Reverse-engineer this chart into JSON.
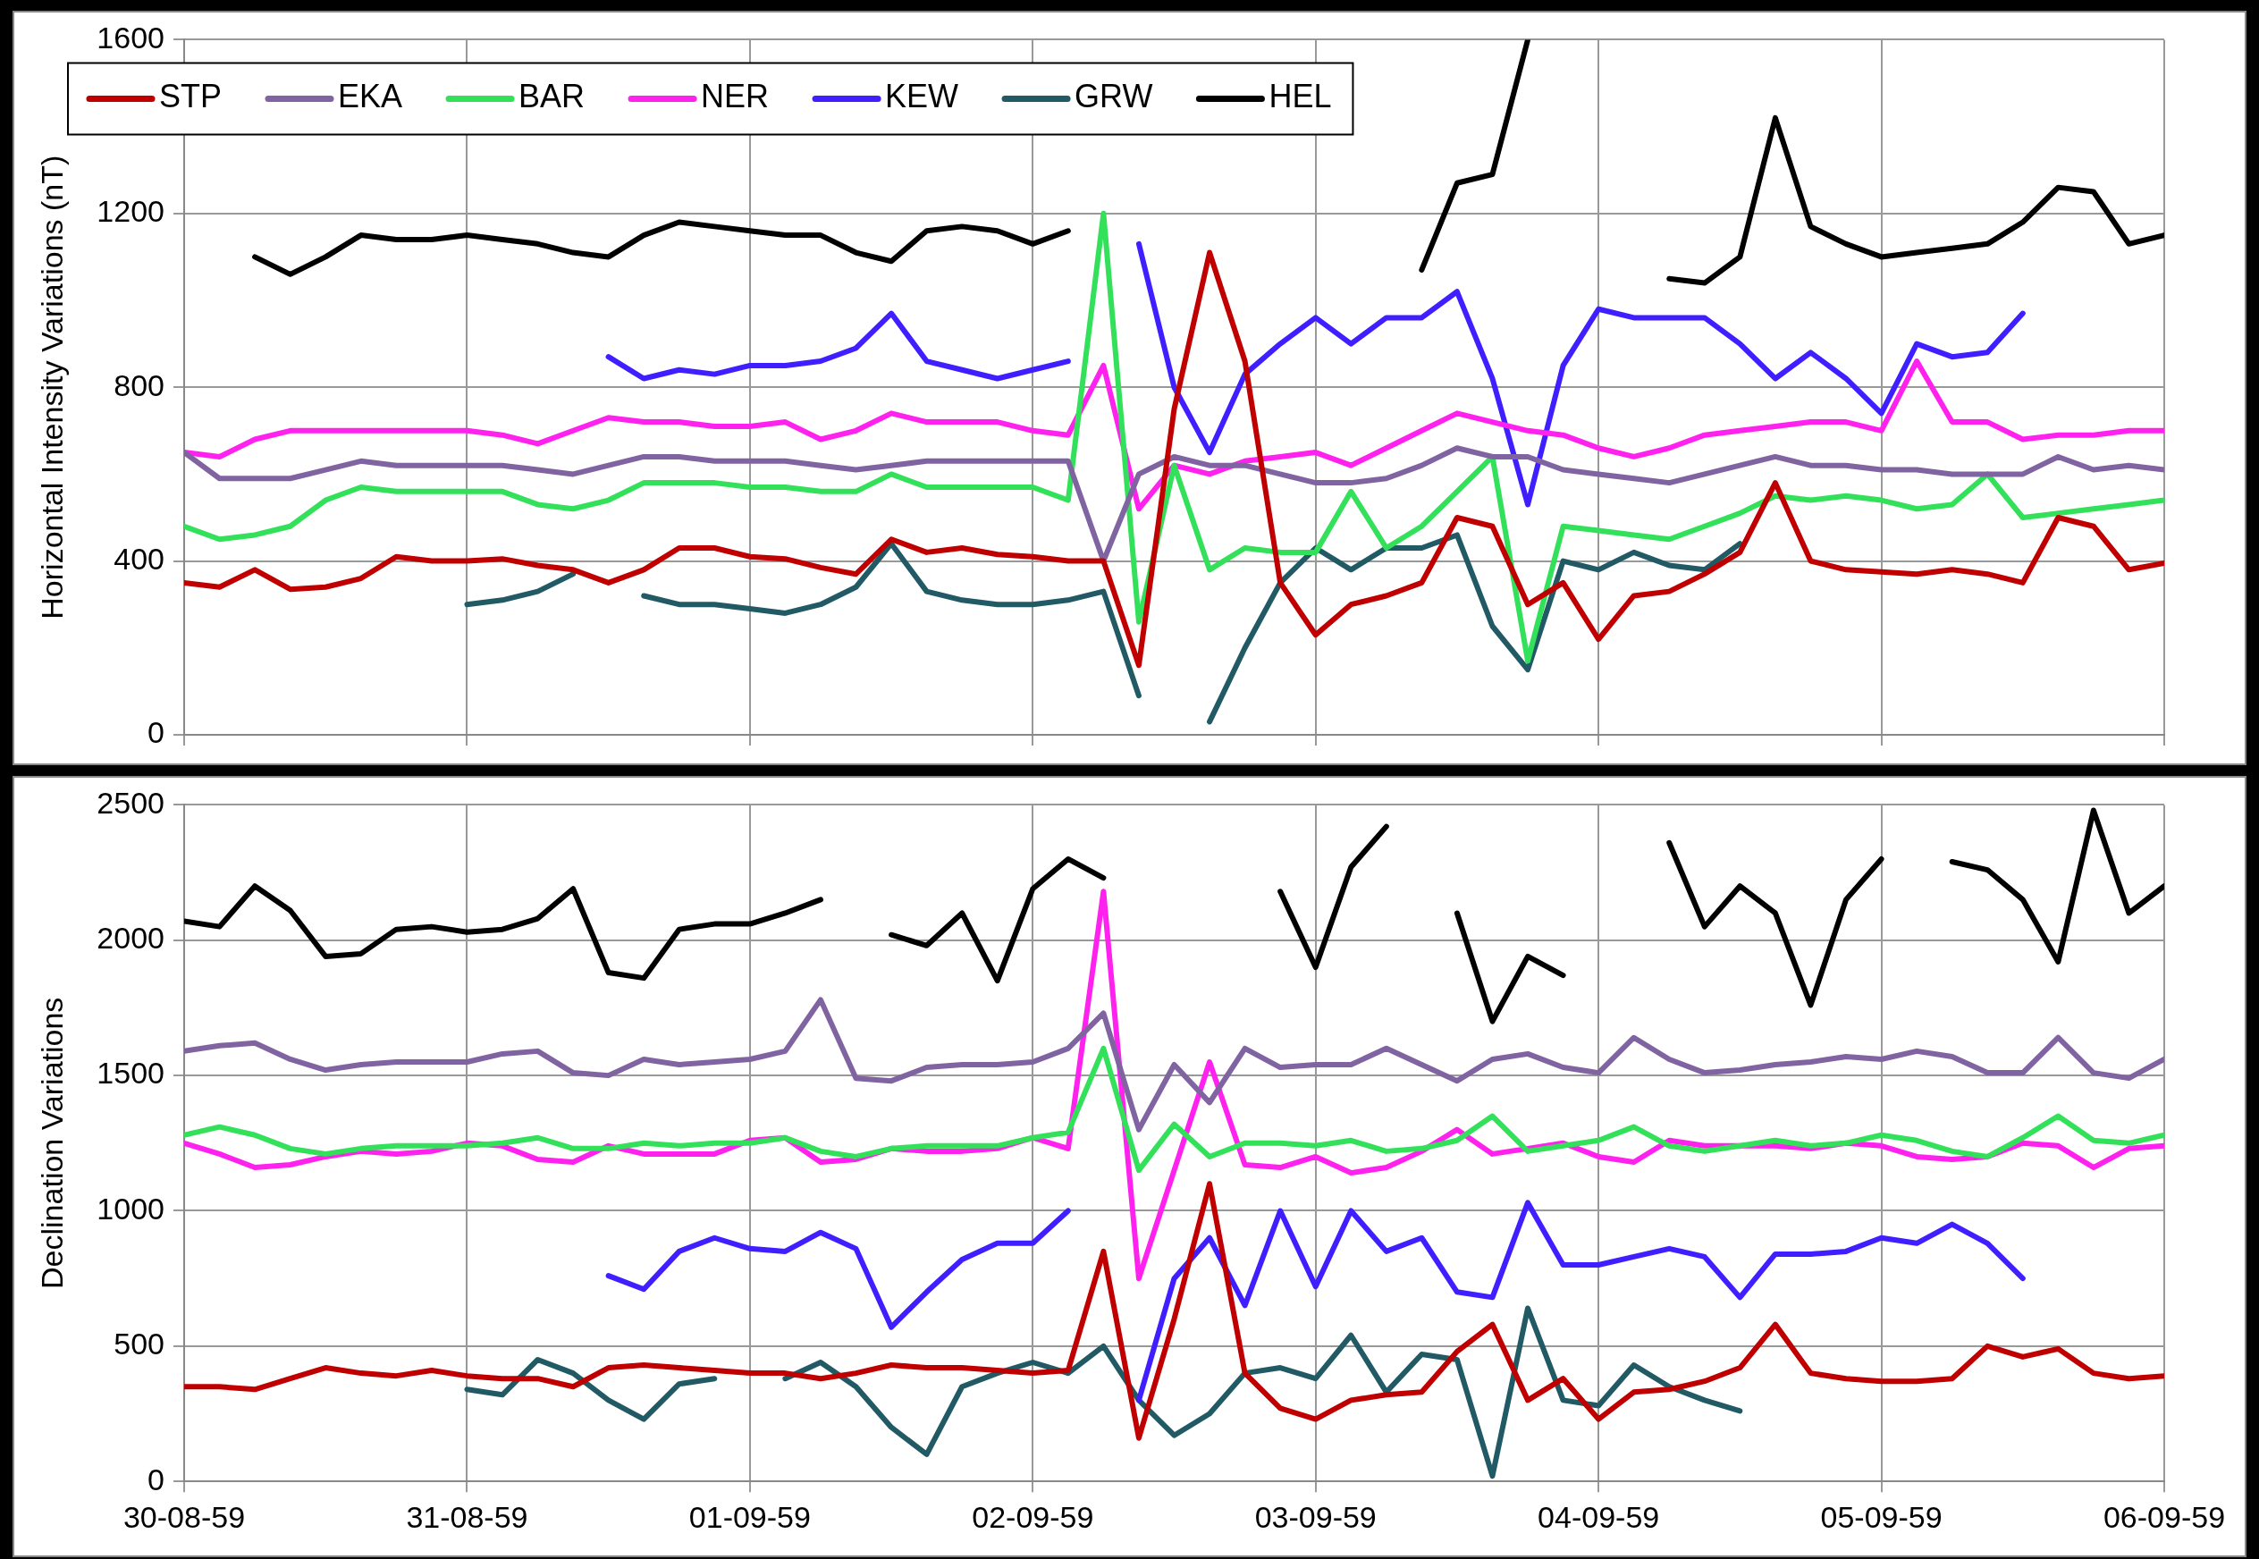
{
  "chart_data": [
    {
      "type": "line",
      "ylabel": "Horizontal Intensity Variations (nT)",
      "x": [
        "1959-08-30T00:00",
        "1959-08-30T03:00",
        "1959-08-30T06:00",
        "1959-08-30T09:00",
        "1959-08-30T12:00",
        "1959-08-30T15:00",
        "1959-08-30T18:00",
        "1959-08-30T21:00",
        "1959-08-31T00:00",
        "1959-08-31T03:00",
        "1959-08-31T06:00",
        "1959-08-31T09:00",
        "1959-08-31T12:00",
        "1959-08-31T15:00",
        "1959-08-31T18:00",
        "1959-08-31T21:00",
        "1959-09-01T00:00",
        "1959-09-01T03:00",
        "1959-09-01T06:00",
        "1959-09-01T09:00",
        "1959-09-01T12:00",
        "1959-09-01T15:00",
        "1959-09-01T18:00",
        "1959-09-01T21:00",
        "1959-09-02T00:00",
        "1959-09-02T03:00",
        "1959-09-02T06:00",
        "1959-09-02T09:00",
        "1959-09-02T12:00",
        "1959-09-02T15:00",
        "1959-09-02T18:00",
        "1959-09-02T21:00",
        "1959-09-03T00:00",
        "1959-09-03T03:00",
        "1959-09-03T06:00",
        "1959-09-03T09:00",
        "1959-09-03T12:00",
        "1959-09-03T15:00",
        "1959-09-03T18:00",
        "1959-09-03T21:00",
        "1959-09-04T00:00",
        "1959-09-04T03:00",
        "1959-09-04T06:00",
        "1959-09-04T09:00",
        "1959-09-04T12:00",
        "1959-09-04T15:00",
        "1959-09-04T18:00",
        "1959-09-04T21:00",
        "1959-09-05T00:00",
        "1959-09-05T03:00",
        "1959-09-05T06:00",
        "1959-09-05T09:00",
        "1959-09-05T12:00",
        "1959-09-05T15:00",
        "1959-09-05T18:00",
        "1959-09-05T21:00",
        "1959-09-06T00:00"
      ],
      "xlim": [
        "1959-08-30",
        "1959-09-06"
      ],
      "xticks": [
        {
          "value": "1959-08-30",
          "label": null
        },
        {
          "value": "1959-08-31",
          "label": null
        },
        {
          "value": "1959-09-01",
          "label": null
        },
        {
          "value": "1959-09-02",
          "label": null
        },
        {
          "value": "1959-09-03",
          "label": null
        },
        {
          "value": "1959-09-04",
          "label": null
        },
        {
          "value": "1959-09-05",
          "label": null
        },
        {
          "value": "1959-09-06",
          "label": null
        }
      ],
      "ylim": [
        0,
        1600
      ],
      "yticks": [
        0,
        400,
        800,
        1200,
        1600
      ],
      "grid": true,
      "legend": "top left",
      "tick_labels": "y",
      "series": [
        {
          "name": "STP",
          "color": "#c00000",
          "values": [
            350,
            340,
            380,
            335,
            340,
            360,
            410,
            400,
            400,
            405,
            390,
            380,
            350,
            380,
            430,
            430,
            410,
            405,
            385,
            370,
            450,
            420,
            430,
            415,
            410,
            400,
            400,
            160,
            750,
            1110,
            860,
            350,
            230,
            300,
            320,
            350,
            500,
            480,
            300,
            350,
            220,
            320,
            330,
            370,
            420,
            580,
            400,
            380,
            375,
            370,
            380,
            370,
            350,
            500,
            480,
            380,
            395
          ]
        },
        {
          "name": "EKA",
          "color": "#8064a2",
          "values": [
            650,
            590,
            590,
            590,
            610,
            630,
            620,
            620,
            620,
            620,
            610,
            600,
            620,
            640,
            640,
            630,
            630,
            630,
            620,
            610,
            620,
            630,
            630,
            630,
            630,
            630,
            400,
            600,
            640,
            620,
            620,
            600,
            580,
            580,
            590,
            620,
            660,
            640,
            640,
            610,
            600,
            590,
            580,
            600,
            620,
            640,
            620,
            620,
            610,
            610,
            600,
            600,
            600,
            640,
            610,
            620,
            610
          ]
        },
        {
          "name": "BAR",
          "color": "#33e05a",
          "values": [
            480,
            450,
            460,
            480,
            540,
            570,
            560,
            560,
            560,
            560,
            530,
            520,
            540,
            580,
            580,
            580,
            570,
            570,
            560,
            560,
            600,
            570,
            570,
            570,
            570,
            540,
            1200,
            260,
            620,
            380,
            430,
            420,
            420,
            560,
            430,
            480,
            560,
            640,
            170,
            480,
            470,
            460,
            450,
            480,
            510,
            550,
            540,
            550,
            540,
            520,
            530,
            600,
            500,
            510,
            520,
            530,
            540
          ]
        },
        {
          "name": "NER",
          "color": "#ff22ee",
          "values": [
            650,
            640,
            680,
            700,
            700,
            700,
            700,
            700,
            700,
            690,
            670,
            700,
            730,
            720,
            720,
            710,
            710,
            720,
            680,
            700,
            740,
            720,
            720,
            720,
            700,
            690,
            850,
            520,
            620,
            600,
            630,
            640,
            650,
            620,
            660,
            700,
            740,
            720,
            700,
            690,
            660,
            640,
            660,
            690,
            700,
            710,
            720,
            720,
            700,
            860,
            720,
            720,
            680,
            690,
            690,
            700,
            700
          ]
        },
        {
          "name": "KEW",
          "color": "#3f1fff",
          "values": [
            null,
            null,
            null,
            null,
            null,
            null,
            null,
            null,
            null,
            null,
            null,
            null,
            870,
            820,
            840,
            830,
            850,
            850,
            860,
            890,
            970,
            860,
            840,
            820,
            840,
            860,
            null,
            1130,
            800,
            650,
            830,
            900,
            960,
            900,
            960,
            960,
            1020,
            820,
            530,
            850,
            980,
            960,
            960,
            960,
            900,
            820,
            880,
            820,
            740,
            900,
            870,
            880,
            970,
            null,
            null,
            null,
            null
          ]
        },
        {
          "name": "GRW",
          "color": "#215a64",
          "values": [
            null,
            null,
            null,
            null,
            null,
            null,
            null,
            null,
            300,
            310,
            330,
            370,
            null,
            320,
            300,
            300,
            290,
            280,
            300,
            340,
            440,
            330,
            310,
            300,
            300,
            310,
            330,
            90,
            null,
            30,
            200,
            350,
            430,
            380,
            430,
            430,
            460,
            250,
            150,
            400,
            380,
            420,
            390,
            380,
            440,
            null,
            null,
            null,
            null,
            null,
            null,
            null,
            null,
            null,
            null,
            null,
            null
          ]
        },
        {
          "name": "HEL",
          "color": "#000000",
          "values": [
            null,
            null,
            1100,
            1060,
            1100,
            1150,
            1140,
            1140,
            1150,
            1140,
            1130,
            1110,
            1100,
            1150,
            1180,
            1170,
            1160,
            1150,
            1150,
            1110,
            1090,
            1160,
            1170,
            1160,
            1130,
            1160,
            null,
            null,
            null,
            null,
            null,
            null,
            null,
            null,
            null,
            1070,
            1270,
            1290,
            1600,
            null,
            null,
            null,
            1050,
            1040,
            1100,
            1420,
            1170,
            1130,
            1100,
            1110,
            1120,
            1130,
            1180,
            1260,
            1250,
            1130,
            1150
          ]
        }
      ]
    },
    {
      "type": "line",
      "ylabel": "Declination Variations",
      "x": [
        "1959-08-30T00:00",
        "1959-08-30T03:00",
        "1959-08-30T06:00",
        "1959-08-30T09:00",
        "1959-08-30T12:00",
        "1959-08-30T15:00",
        "1959-08-30T18:00",
        "1959-08-30T21:00",
        "1959-08-31T00:00",
        "1959-08-31T03:00",
        "1959-08-31T06:00",
        "1959-08-31T09:00",
        "1959-08-31T12:00",
        "1959-08-31T15:00",
        "1959-08-31T18:00",
        "1959-08-31T21:00",
        "1959-09-01T00:00",
        "1959-09-01T03:00",
        "1959-09-01T06:00",
        "1959-09-01T09:00",
        "1959-09-01T12:00",
        "1959-09-01T15:00",
        "1959-09-01T18:00",
        "1959-09-01T21:00",
        "1959-09-02T00:00",
        "1959-09-02T03:00",
        "1959-09-02T06:00",
        "1959-09-02T09:00",
        "1959-09-02T12:00",
        "1959-09-02T15:00",
        "1959-09-02T18:00",
        "1959-09-02T21:00",
        "1959-09-03T00:00",
        "1959-09-03T03:00",
        "1959-09-03T06:00",
        "1959-09-03T09:00",
        "1959-09-03T12:00",
        "1959-09-03T15:00",
        "1959-09-03T18:00",
        "1959-09-03T21:00",
        "1959-09-04T00:00",
        "1959-09-04T03:00",
        "1959-09-04T06:00",
        "1959-09-04T09:00",
        "1959-09-04T12:00",
        "1959-09-04T15:00",
        "1959-09-04T18:00",
        "1959-09-04T21:00",
        "1959-09-05T00:00",
        "1959-09-05T03:00",
        "1959-09-05T06:00",
        "1959-09-05T09:00",
        "1959-09-05T12:00",
        "1959-09-05T15:00",
        "1959-09-05T18:00",
        "1959-09-05T21:00",
        "1959-09-06T00:00"
      ],
      "xlim": [
        "1959-08-30",
        "1959-09-06"
      ],
      "xticks": [
        {
          "value": "1959-08-30",
          "label": "30-08-59"
        },
        {
          "value": "1959-08-31",
          "label": "31-08-59"
        },
        {
          "value": "1959-09-01",
          "label": "01-09-59"
        },
        {
          "value": "1959-09-02",
          "label": "02-09-59"
        },
        {
          "value": "1959-09-03",
          "label": "03-09-59"
        },
        {
          "value": "1959-09-04",
          "label": "04-09-59"
        },
        {
          "value": "1959-09-05",
          "label": "05-09-59"
        },
        {
          "value": "1959-09-06",
          "label": "06-09-59"
        }
      ],
      "ylim": [
        0,
        2500
      ],
      "yticks": [
        0,
        500,
        1000,
        1500,
        2000,
        2500
      ],
      "grid": true,
      "series": [
        {
          "color": "#c00000",
          "values": [
            350,
            350,
            340,
            380,
            420,
            400,
            390,
            410,
            390,
            380,
            380,
            350,
            420,
            430,
            420,
            410,
            400,
            400,
            380,
            400,
            430,
            420,
            420,
            410,
            400,
            410,
            850,
            160,
            600,
            1100,
            400,
            270,
            230,
            300,
            320,
            330,
            480,
            580,
            300,
            380,
            230,
            330,
            340,
            370,
            420,
            580,
            400,
            380,
            370,
            370,
            380,
            500,
            460,
            490,
            400,
            380,
            390
          ]
        },
        {
          "color": "#8064a2",
          "values": [
            1590,
            1610,
            1620,
            1560,
            1520,
            1540,
            1550,
            1550,
            1550,
            1580,
            1590,
            1510,
            1500,
            1560,
            1540,
            1550,
            1560,
            1590,
            1780,
            1490,
            1480,
            1530,
            1540,
            1540,
            1550,
            1600,
            1730,
            1300,
            1540,
            1400,
            1600,
            1530,
            1540,
            1540,
            1600,
            1540,
            1480,
            1560,
            1580,
            1530,
            1510,
            1640,
            1560,
            1510,
            1520,
            1540,
            1550,
            1570,
            1560,
            1590,
            1570,
            1510,
            1510,
            1640,
            1510,
            1490,
            1560
          ]
        },
        {
          "color": "#33e05a",
          "values": [
            1280,
            1310,
            1280,
            1230,
            1210,
            1230,
            1240,
            1240,
            1240,
            1250,
            1270,
            1230,
            1230,
            1250,
            1240,
            1250,
            1250,
            1270,
            1220,
            1200,
            1230,
            1240,
            1240,
            1240,
            1270,
            1290,
            1600,
            1150,
            1320,
            1200,
            1250,
            1250,
            1240,
            1260,
            1220,
            1230,
            1260,
            1350,
            1220,
            1240,
            1260,
            1310,
            1240,
            1220,
            1240,
            1260,
            1240,
            1250,
            1280,
            1260,
            1220,
            1200,
            1270,
            1350,
            1260,
            1250,
            1280
          ]
        },
        {
          "color": "#ff22ee",
          "values": [
            1250,
            1210,
            1160,
            1170,
            1200,
            1220,
            1210,
            1220,
            1250,
            1240,
            1190,
            1180,
            1240,
            1210,
            1210,
            1210,
            1260,
            1270,
            1180,
            1190,
            1230,
            1220,
            1220,
            1230,
            1270,
            1230,
            2180,
            750,
            1150,
            1550,
            1170,
            1160,
            1200,
            1140,
            1160,
            1220,
            1300,
            1210,
            1230,
            1250,
            1200,
            1180,
            1260,
            1240,
            1240,
            1240,
            1230,
            1250,
            1240,
            1200,
            1190,
            1200,
            1250,
            1240,
            1160,
            1230,
            1240
          ]
        },
        {
          "color": "#3f1fff",
          "values": [
            null,
            null,
            null,
            null,
            null,
            null,
            null,
            null,
            null,
            null,
            null,
            null,
            760,
            710,
            850,
            900,
            860,
            850,
            920,
            860,
            570,
            700,
            820,
            880,
            880,
            1000,
            null,
            300,
            750,
            900,
            650,
            1000,
            720,
            1000,
            850,
            900,
            700,
            680,
            1030,
            800,
            800,
            830,
            860,
            830,
            680,
            840,
            840,
            850,
            900,
            880,
            950,
            880,
            750,
            null,
            null,
            null,
            null
          ]
        },
        {
          "color": "#215a64",
          "values": [
            null,
            null,
            null,
            null,
            null,
            null,
            null,
            null,
            340,
            320,
            450,
            400,
            300,
            230,
            360,
            380,
            null,
            380,
            440,
            350,
            200,
            100,
            350,
            400,
            440,
            400,
            500,
            300,
            170,
            250,
            400,
            420,
            380,
            540,
            330,
            470,
            450,
            20,
            640,
            300,
            280,
            430,
            350,
            300,
            260,
            null,
            null,
            null,
            null,
            null,
            null,
            null,
            null,
            null,
            null,
            null,
            null
          ]
        },
        {
          "color": "#000000",
          "values": [
            2070,
            2050,
            2200,
            2110,
            1940,
            1950,
            2040,
            2050,
            2030,
            2040,
            2080,
            2190,
            1880,
            1860,
            2040,
            2060,
            2060,
            2100,
            2150,
            null,
            2020,
            1980,
            2100,
            1850,
            2190,
            2300,
            2230,
            null,
            null,
            null,
            null,
            2180,
            1900,
            2270,
            2420,
            null,
            2100,
            1700,
            1940,
            1870,
            null,
            null,
            2360,
            2050,
            2200,
            2100,
            1760,
            2150,
            2300,
            null,
            2290,
            2260,
            2150,
            1920,
            2480,
            2100,
            2200
          ]
        }
      ]
    }
  ]
}
